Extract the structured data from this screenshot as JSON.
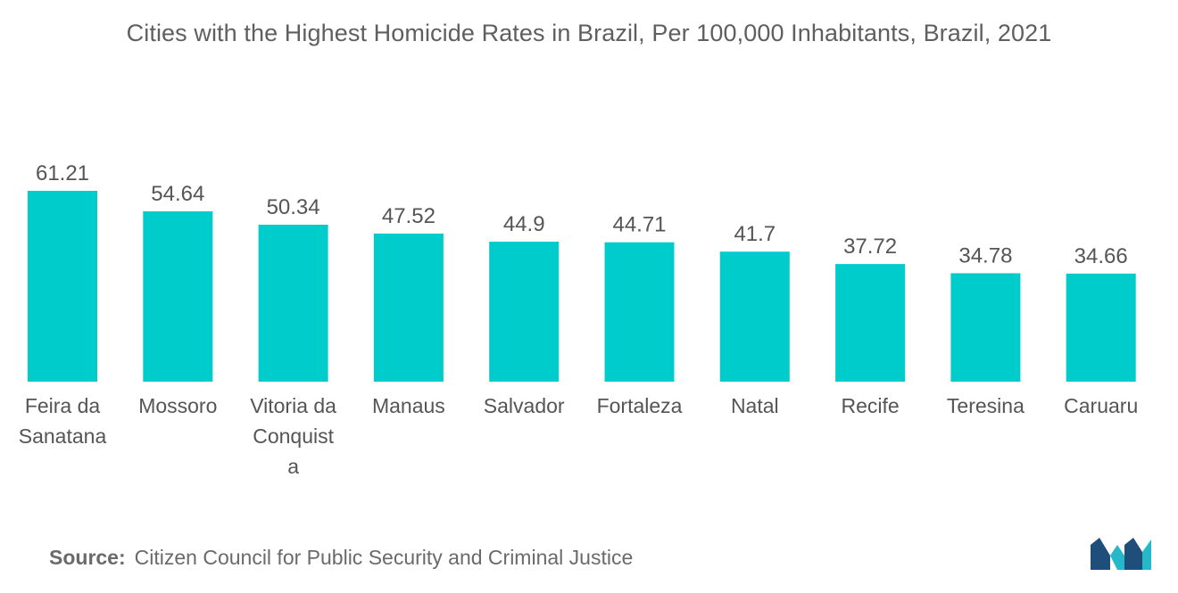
{
  "title": "Cities with the Highest Homicide Rates in Brazil, Per 100,000 Inhabitants, Brazil, 2021",
  "source": {
    "label": "Source:",
    "text": "Citizen Council for Public Security and Criminal Justice"
  },
  "colors": {
    "bar": "#00CCCC",
    "text": "#555555",
    "logo_dark": "#1f4e7a",
    "logo_light": "#26b8c9"
  },
  "logo_icon": "mordor-intelligence-logo-icon",
  "chart_data": {
    "type": "bar",
    "categories": [
      [
        "Feira da",
        "Sanatana"
      ],
      [
        "Mossoro"
      ],
      [
        "Vitoria da",
        "Conquist",
        "a"
      ],
      [
        "Manaus"
      ],
      [
        "Salvador"
      ],
      [
        "Fortaleza"
      ],
      [
        "Natal"
      ],
      [
        "Recife"
      ],
      [
        "Teresina"
      ],
      [
        "Caruaru"
      ]
    ],
    "values": [
      61.21,
      54.64,
      50.34,
      47.52,
      44.9,
      44.71,
      41.7,
      37.72,
      34.78,
      34.66
    ],
    "value_labels": [
      "61.21",
      "54.64",
      "50.34",
      "47.52",
      "44.9",
      "44.71",
      "41.7",
      "37.72",
      "34.78",
      "34.66"
    ],
    "ylim": [
      0,
      61.21
    ],
    "grid": false,
    "legend": "none",
    "xlabel": "",
    "ylabel": ""
  }
}
